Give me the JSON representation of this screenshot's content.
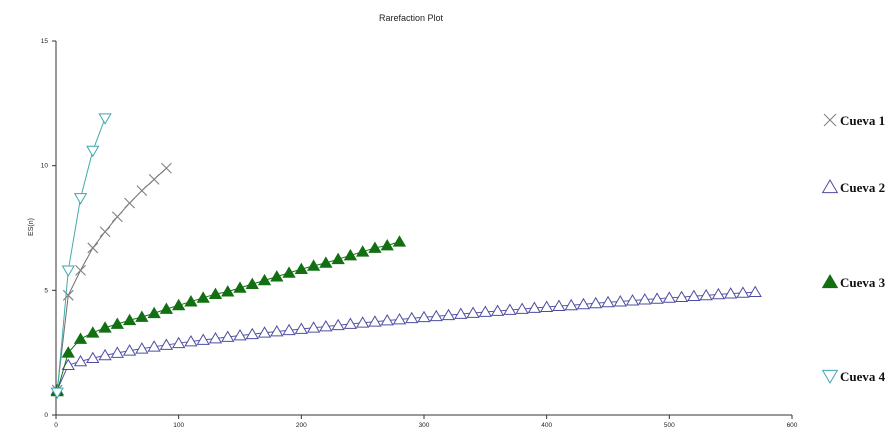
{
  "chart_data": {
    "type": "line",
    "title": "Rarefaction Plot",
    "xlabel": "",
    "ylabel": "ES(n)",
    "xlim": [
      0,
      600
    ],
    "ylim": [
      0,
      15
    ],
    "x_ticks": [
      0,
      100,
      200,
      300,
      400,
      500,
      600
    ],
    "y_ticks": [
      0,
      5,
      10,
      15
    ],
    "legend_position": "right",
    "series": [
      {
        "name": "Cueva 1",
        "marker": "x",
        "color": "#6f6f6f",
        "marker_color": "#808080",
        "x": [
          1,
          10,
          20,
          30,
          40,
          50,
          60,
          70,
          80,
          90
        ],
        "y": [
          1.0,
          4.8,
          5.8,
          6.7,
          7.35,
          7.95,
          8.5,
          9.0,
          9.45,
          9.9
        ]
      },
      {
        "name": "Cueva 2",
        "marker": "triangle-up-open",
        "color": "#5555a5",
        "marker_color": "#4d4da0",
        "x": [
          1,
          10,
          20,
          30,
          40,
          50,
          60,
          70,
          80,
          90,
          100,
          110,
          120,
          130,
          140,
          150,
          160,
          170,
          180,
          190,
          200,
          210,
          220,
          230,
          240,
          250,
          260,
          270,
          280,
          290,
          300,
          310,
          320,
          330,
          340,
          350,
          360,
          370,
          380,
          390,
          400,
          410,
          420,
          430,
          440,
          450,
          460,
          470,
          480,
          490,
          500,
          510,
          520,
          530,
          540,
          550,
          560,
          570
        ],
        "y": [
          1.0,
          2.0,
          2.15,
          2.28,
          2.39,
          2.49,
          2.58,
          2.66,
          2.74,
          2.81,
          2.88,
          2.95,
          3.01,
          3.07,
          3.13,
          3.19,
          3.24,
          3.3,
          3.35,
          3.4,
          3.45,
          3.5,
          3.55,
          3.6,
          3.65,
          3.7,
          3.74,
          3.79,
          3.83,
          3.88,
          3.92,
          3.96,
          4.0,
          4.05,
          4.09,
          4.13,
          4.17,
          4.21,
          4.25,
          4.29,
          4.33,
          4.37,
          4.4,
          4.44,
          4.48,
          4.52,
          4.55,
          4.59,
          4.63,
          4.66,
          4.7,
          4.73,
          4.77,
          4.8,
          4.84,
          4.87,
          4.9,
          4.93
        ]
      },
      {
        "name": "Cueva 3",
        "marker": "triangle-up-filled",
        "color": "#127012",
        "marker_color": "#127012",
        "x": [
          1,
          10,
          20,
          30,
          40,
          50,
          60,
          70,
          80,
          90,
          100,
          110,
          120,
          130,
          140,
          150,
          160,
          170,
          180,
          190,
          200,
          210,
          220,
          230,
          240,
          250,
          260,
          270,
          280
        ],
        "y": [
          0.95,
          2.5,
          3.05,
          3.3,
          3.5,
          3.65,
          3.8,
          3.93,
          4.08,
          4.25,
          4.4,
          4.55,
          4.7,
          4.85,
          4.95,
          5.1,
          5.25,
          5.4,
          5.55,
          5.7,
          5.85,
          5.98,
          6.1,
          6.25,
          6.4,
          6.55,
          6.7,
          6.8,
          6.95
        ]
      },
      {
        "name": "Cueva 4",
        "marker": "triangle-down-open",
        "color": "#44aaaa",
        "marker_color": "#3fa8ae",
        "x": [
          1,
          10,
          20,
          30,
          40
        ],
        "y": [
          0.9,
          5.8,
          8.7,
          10.6,
          11.9
        ]
      }
    ]
  }
}
